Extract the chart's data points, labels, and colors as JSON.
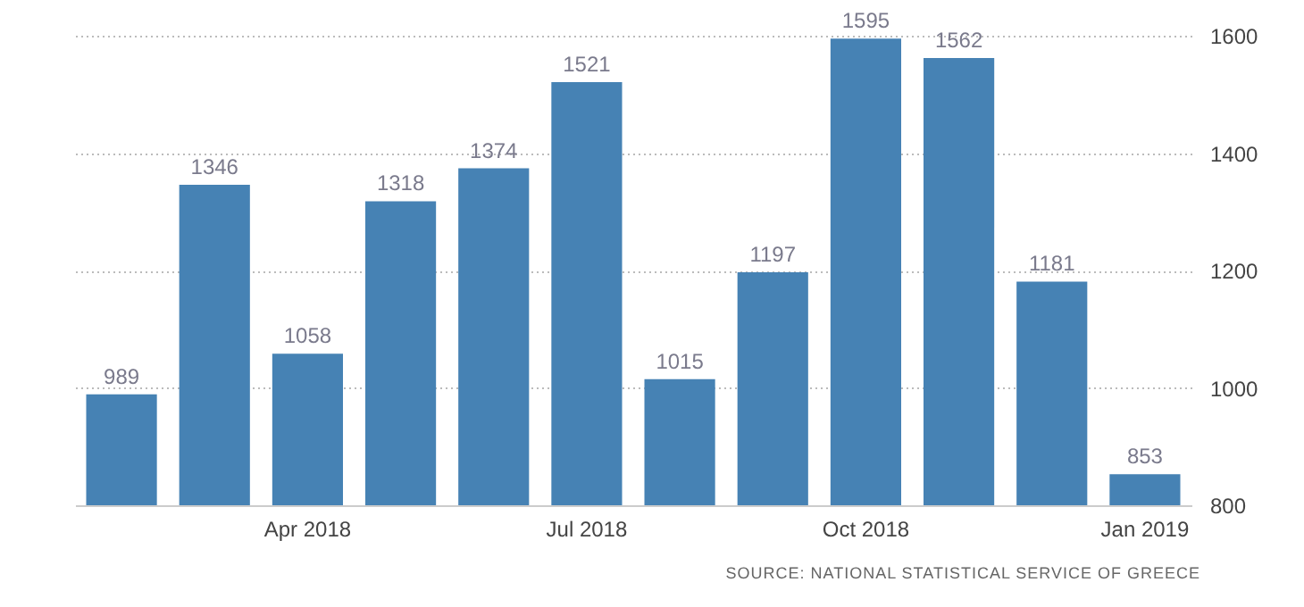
{
  "chart_data": {
    "type": "bar",
    "categories": [
      null,
      null,
      "Apr 2018",
      null,
      null,
      "Jul 2018",
      null,
      null,
      "Oct 2018",
      null,
      null,
      "Jan 2019"
    ],
    "values": [
      989,
      1346,
      1058,
      1318,
      1374,
      1521,
      1015,
      1197,
      1595,
      1562,
      1181,
      853
    ],
    "color": "#4682b4",
    "ylim": [
      800,
      1600
    ],
    "yticks": [
      800,
      1000,
      1200,
      1400,
      1600
    ],
    "grid": "y",
    "data_labels": true,
    "annotations": [
      "SOURCE: NATIONAL STATISTICAL SERVICE OF GREECE"
    ]
  }
}
